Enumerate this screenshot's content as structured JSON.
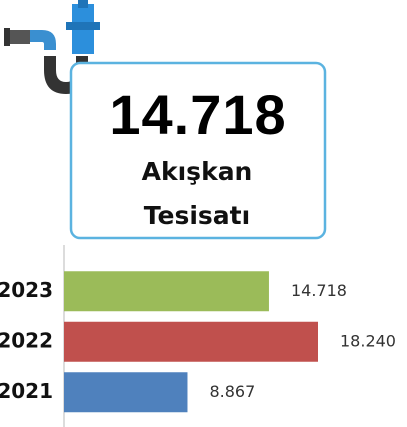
{
  "kpi": {
    "value": "14.718",
    "label": "Akışkan Tesisatı"
  },
  "chart_data": {
    "type": "bar",
    "orientation": "horizontal",
    "categories": [
      "2023",
      "2022",
      "2021"
    ],
    "values": [
      14718,
      18240,
      8867
    ],
    "value_labels": [
      "14.718",
      "18.240",
      "8.867"
    ],
    "colors": [
      "#9bbb59",
      "#c0504d",
      "#4f81bd"
    ]
  }
}
